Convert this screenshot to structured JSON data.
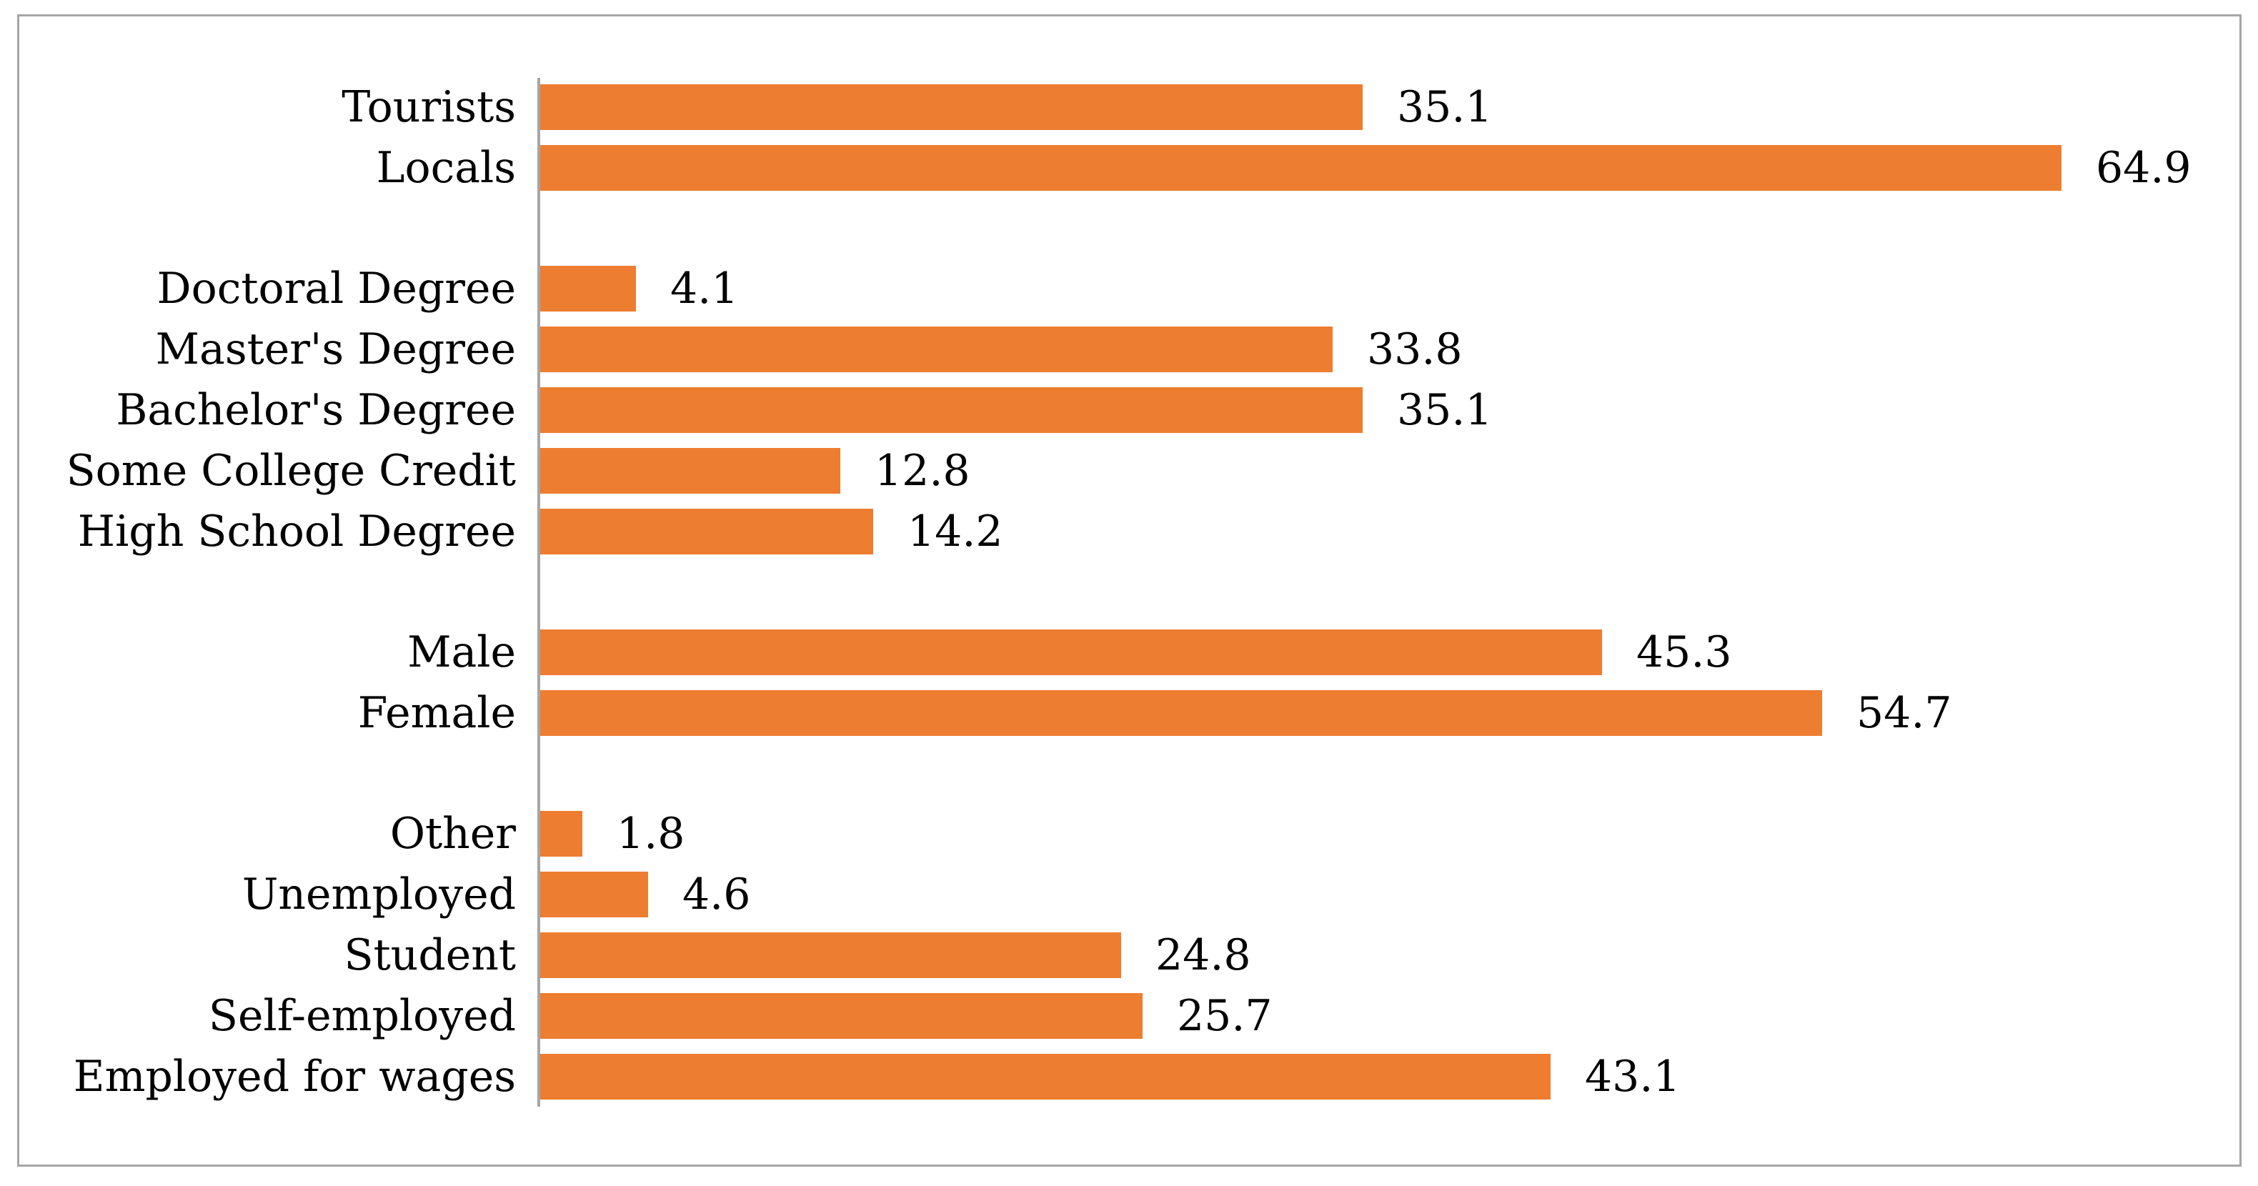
{
  "figure": {
    "background": "#ffffff",
    "frame_border_color": "#a6a6a6",
    "axis_line_color": "#a6a6a6",
    "text_color": "#000000"
  },
  "chart_data": {
    "type": "bar",
    "orientation": "horizontal",
    "bar_color": "#ED7D31",
    "title": "",
    "xlabel": "",
    "ylabel": "",
    "value_axis": {
      "min": 0,
      "max": 70,
      "visible": false
    },
    "grid": false,
    "legend": false,
    "value_labels": "end-of-bar, one decimal",
    "groups": [
      {
        "items": [
          {
            "label": "Tourists",
            "value": 35.1
          },
          {
            "label": "Locals",
            "value": 64.9
          }
        ]
      },
      {
        "items": [
          {
            "label": "Doctoral Degree",
            "value": 4.1
          },
          {
            "label": "Master's Degree",
            "value": 33.8
          },
          {
            "label": "Bachelor's Degree",
            "value": 35.1
          },
          {
            "label": "Some College Credit",
            "value": 12.8
          },
          {
            "label": "High School Degree",
            "value": 14.2
          }
        ]
      },
      {
        "items": [
          {
            "label": "Male",
            "value": 45.3
          },
          {
            "label": "Female",
            "value": 54.7
          }
        ]
      },
      {
        "items": [
          {
            "label": "Other",
            "value": 1.8
          },
          {
            "label": "Unemployed",
            "value": 4.6
          },
          {
            "label": "Student",
            "value": 24.8
          },
          {
            "label": "Self-employed",
            "value": 25.7
          },
          {
            "label": "Employed for wages",
            "value": 43.1
          }
        ]
      }
    ]
  }
}
